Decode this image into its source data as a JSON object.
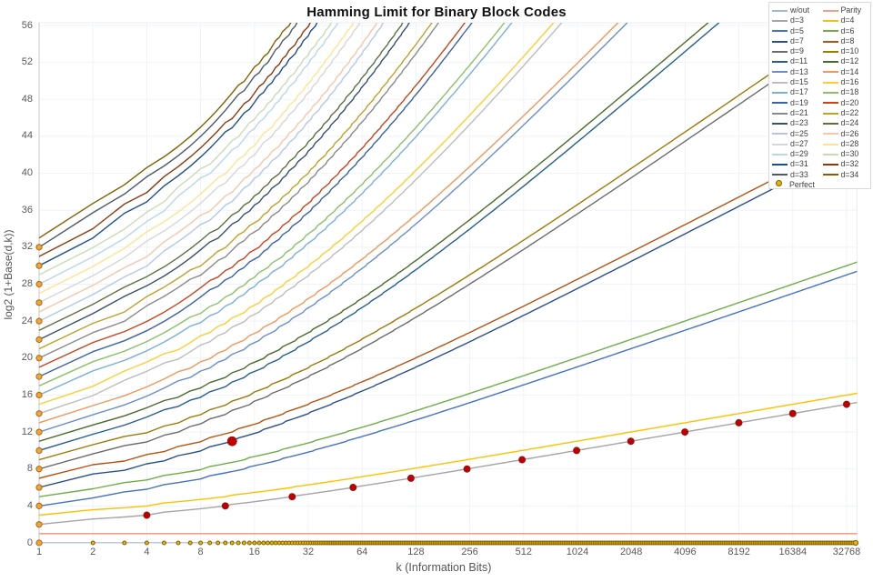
{
  "title": "Hamming Limit for Binary Block Codes",
  "chart_data": {
    "type": "line",
    "x": {
      "label": "k (Information Bits)",
      "scale": "log2",
      "ticks": [
        1,
        2,
        4,
        8,
        16,
        32,
        64,
        128,
        256,
        512,
        1024,
        2048,
        4096,
        8192,
        16384,
        32768
      ]
    },
    "y": {
      "label": "log2  (1+Base(d,k))",
      "min": 0,
      "max": 56,
      "ticks": [
        0,
        4,
        8,
        12,
        16,
        20,
        24,
        28,
        32,
        36,
        40,
        44,
        48,
        52,
        56
      ]
    },
    "grid": "faint horizontal and vertical gridlines",
    "legend_position": "top-right",
    "model_note": "Each d-curve is the Hamming sphere-packing limit: minimal check bits r with 2^r >= sum(i=0..t) C(k+r,i), t=floor((d-1)/2); plotted y = log2(Hamming ball volume) = log2(1+Base(d,k)). Even d plots the (d-1) curve + 1 (extended code). w/out = 0 check bits, Parity = 1 check bit.",
    "series": [
      {
        "label": "w/out",
        "color": "#9FB8D8",
        "type": "hline",
        "y": 0
      },
      {
        "label": "Parity",
        "color": "#EFA183",
        "type": "hline",
        "y": 1
      },
      {
        "label": "d=3",
        "color": "#A5A5A5",
        "type": "hamming",
        "d": 3
      },
      {
        "label": "d=4",
        "color": "#FFC000",
        "type": "hamming",
        "d": 4
      },
      {
        "label": "d=5",
        "color": "#4472C4",
        "type": "hamming",
        "d": 5
      },
      {
        "label": "d=6",
        "color": "#70AD47",
        "type": "hamming",
        "d": 6
      },
      {
        "label": "d=7",
        "color": "#2A4F8F",
        "type": "hamming",
        "d": 7
      },
      {
        "label": "d=8",
        "color": "#B55310",
        "type": "hamming",
        "d": 8
      },
      {
        "label": "d=9",
        "color": "#6B6B6B",
        "type": "hamming",
        "d": 9
      },
      {
        "label": "d=10",
        "color": "#9C7A06",
        "type": "hamming",
        "d": 10
      },
      {
        "label": "d=11",
        "color": "#255E91",
        "type": "hamming",
        "d": 11
      },
      {
        "label": "d=12",
        "color": "#4A6B28",
        "type": "hamming",
        "d": 12
      },
      {
        "label": "d=13",
        "color": "#698ED0",
        "type": "hamming",
        "d": 13
      },
      {
        "label": "d=14",
        "color": "#F1975A",
        "type": "hamming",
        "d": 14
      },
      {
        "label": "d=15",
        "color": "#BDBDBD",
        "type": "hamming",
        "d": 15
      },
      {
        "label": "d=16",
        "color": "#FFCD33",
        "type": "hamming",
        "d": 16
      },
      {
        "label": "d=17",
        "color": "#7CAFDD",
        "type": "hamming",
        "d": 17
      },
      {
        "label": "d=18",
        "color": "#8CC168",
        "type": "hamming",
        "d": 18
      },
      {
        "label": "d=19",
        "color": "#3A62A5",
        "type": "hamming",
        "d": 19
      },
      {
        "label": "d=20",
        "color": "#C9441C",
        "type": "hamming",
        "d": 20
      },
      {
        "label": "d=21",
        "color": "#8A8A8A",
        "type": "hamming",
        "d": 21
      },
      {
        "label": "d=22",
        "color": "#C2A029",
        "type": "hamming",
        "d": 22
      },
      {
        "label": "d=23",
        "color": "#39506B",
        "type": "hamming",
        "d": 23
      },
      {
        "label": "d=24",
        "color": "#5B7140",
        "type": "hamming",
        "d": 24
      },
      {
        "label": "d=25",
        "color": "#B3C8E8",
        "type": "hamming",
        "d": 25
      },
      {
        "label": "d=26",
        "color": "#F6C6A9",
        "type": "hamming",
        "d": 26
      },
      {
        "label": "d=27",
        "color": "#D6D6D6",
        "type": "hamming",
        "d": 27
      },
      {
        "label": "d=28",
        "color": "#FFE394",
        "type": "hamming",
        "d": 28
      },
      {
        "label": "d=29",
        "color": "#BCD4EC",
        "type": "hamming",
        "d": 29
      },
      {
        "label": "d=30",
        "color": "#C8DCB4",
        "type": "hamming",
        "d": 30
      },
      {
        "label": "d=31",
        "color": "#1F4E8C",
        "type": "hamming",
        "d": 31
      },
      {
        "label": "d=32",
        "color": "#8B3A0E",
        "type": "hamming",
        "d": 32
      },
      {
        "label": "d=33",
        "color": "#4C5A6E",
        "type": "hamming",
        "d": 33
      },
      {
        "label": "d=34",
        "color": "#806000",
        "type": "hamming",
        "d": 34
      }
    ],
    "perfect_codes": {
      "label": "Perfect",
      "marker_fill": "#E8B400",
      "marker_stroke": "#7F6000",
      "trivial_row": {
        "y": 0,
        "k_from": 1,
        "k_to": 32768,
        "note": "trivial (k,k,1) perfect codes marked at every k along y=0"
      },
      "repetition_at_k1": [
        [
          1,
          0
        ],
        [
          1,
          2
        ],
        [
          1,
          4
        ],
        [
          1,
          6
        ],
        [
          1,
          8
        ],
        [
          1,
          10
        ],
        [
          1,
          12
        ],
        [
          1,
          14
        ],
        [
          1,
          16
        ],
        [
          1,
          18
        ],
        [
          1,
          20
        ],
        [
          1,
          22
        ],
        [
          1,
          24
        ],
        [
          1,
          26
        ],
        [
          1,
          28
        ],
        [
          1,
          30
        ],
        [
          1,
          32
        ]
      ],
      "repetition_fill": "#F1A33C",
      "repetition_stroke": "#A96A12",
      "hamming_codes": {
        "color": "#C00000",
        "stroke": "#8B1A1A",
        "points": [
          [
            4,
            3
          ],
          [
            11,
            4
          ],
          [
            26,
            5
          ],
          [
            57,
            6
          ],
          [
            120,
            7
          ],
          [
            247,
            8
          ],
          [
            502,
            9
          ],
          [
            1013,
            10
          ],
          [
            2036,
            11
          ],
          [
            4083,
            12
          ],
          [
            8178,
            13
          ],
          [
            16369,
            14
          ],
          [
            32752,
            15
          ]
        ]
      },
      "golay_code": {
        "color": "#C00000",
        "stroke": "#8B1A1A",
        "point": [
          12,
          11
        ]
      }
    }
  },
  "legend": {
    "left": [
      "w/out",
      "d=3",
      "d=5",
      "d=7",
      "d=9",
      "d=11",
      "d=13",
      "d=15",
      "d=17",
      "d=19",
      "d=21",
      "d=23",
      "d=25",
      "d=27",
      "d=29",
      "d=31",
      "d=33"
    ],
    "right": [
      "Parity",
      "d=4",
      "d=6",
      "d=8",
      "d=10",
      "d=12",
      "d=14",
      "d=16",
      "d=18",
      "d=20",
      "d=22",
      "d=24",
      "d=26",
      "d=28",
      "d=30",
      "d=32",
      "d=34"
    ],
    "perfect_label": "Perfect"
  }
}
